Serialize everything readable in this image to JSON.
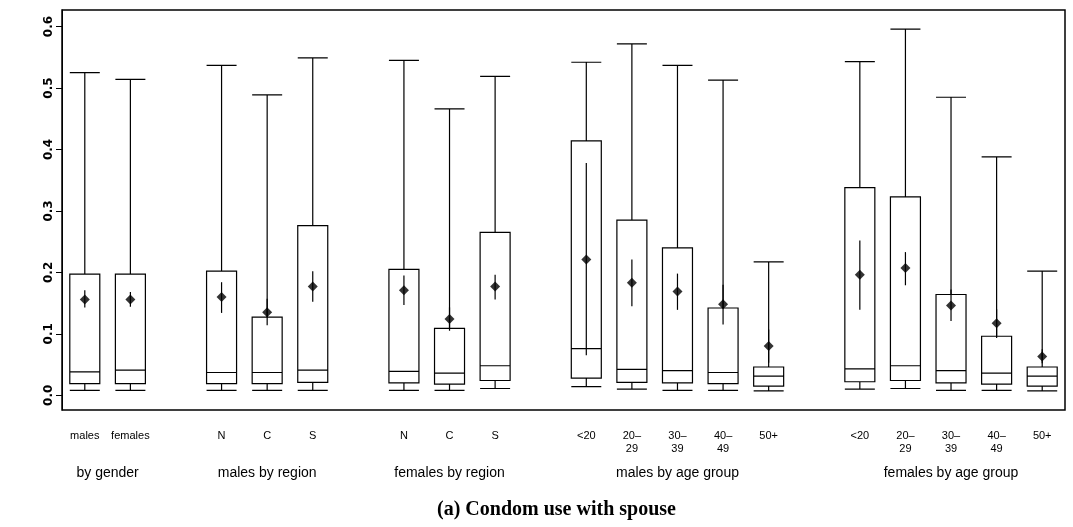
{
  "chart_data": {
    "type": "box",
    "title": "(a) Condom use with spouse",
    "categories": [
      "males",
      "females",
      null,
      "N",
      "C",
      "S",
      null,
      "N",
      "C",
      "S",
      null,
      "<20",
      "20–\n29",
      "30–\n39",
      "40–\n49",
      "50+",
      null,
      "<20",
      "20–\n29",
      "30–\n39",
      "40–\n49",
      "50+"
    ],
    "boxes": [
      {
        "low": 0.008,
        "q1": 0.019,
        "median": 0.038,
        "q3": 0.197,
        "high": 0.525
      },
      {
        "low": 0.008,
        "q1": 0.019,
        "median": 0.041,
        "q3": 0.197,
        "high": 0.514
      },
      null,
      {
        "low": 0.008,
        "q1": 0.019,
        "median": 0.037,
        "q3": 0.202,
        "high": 0.537
      },
      {
        "low": 0.008,
        "q1": 0.019,
        "median": 0.037,
        "q3": 0.127,
        "high": 0.489
      },
      {
        "low": 0.008,
        "q1": 0.021,
        "median": 0.041,
        "q3": 0.276,
        "high": 0.549
      },
      null,
      {
        "low": 0.008,
        "q1": 0.02,
        "median": 0.039,
        "q3": 0.205,
        "high": 0.545
      },
      {
        "low": 0.008,
        "q1": 0.018,
        "median": 0.036,
        "q3": 0.109,
        "high": 0.466
      },
      {
        "low": 0.011,
        "q1": 0.024,
        "median": 0.048,
        "q3": 0.265,
        "high": 0.519
      },
      null,
      {
        "low": 0.014,
        "q1": 0.028,
        "median": 0.076,
        "q3": 0.414,
        "high": 0.542
      },
      {
        "low": 0.01,
        "q1": 0.021,
        "median": 0.042,
        "q3": 0.285,
        "high": 0.572
      },
      {
        "low": 0.008,
        "q1": 0.02,
        "median": 0.04,
        "q3": 0.24,
        "high": 0.537
      },
      {
        "low": 0.008,
        "q1": 0.019,
        "median": 0.037,
        "q3": 0.142,
        "high": 0.513
      },
      {
        "low": 0.007,
        "q1": 0.015,
        "median": 0.031,
        "q3": 0.046,
        "high": 0.217
      },
      null,
      {
        "low": 0.01,
        "q1": 0.022,
        "median": 0.043,
        "q3": 0.338,
        "high": 0.543
      },
      {
        "low": 0.011,
        "q1": 0.024,
        "median": 0.048,
        "q3": 0.323,
        "high": 0.596
      },
      {
        "low": 0.008,
        "q1": 0.02,
        "median": 0.04,
        "q3": 0.164,
        "high": 0.485
      },
      {
        "low": 0.008,
        "q1": 0.018,
        "median": 0.036,
        "q3": 0.096,
        "high": 0.388
      },
      {
        "low": 0.007,
        "q1": 0.015,
        "median": 0.031,
        "q3": 0.046,
        "high": 0.202
      }
    ],
    "series": [
      {
        "type": "scatter",
        "color": "#000000",
        "marker": "diamond",
        "values": [
          0.156,
          0.156,
          null,
          0.16,
          0.135,
          0.177,
          null,
          0.171,
          0.124,
          0.177,
          null,
          0.221,
          0.183,
          0.169,
          0.148,
          0.08,
          null,
          0.196,
          0.207,
          0.146,
          0.117,
          0.063
        ],
        "errors": [
          [
            0.143,
            0.171
          ],
          [
            0.144,
            0.168
          ],
          null,
          [
            0.134,
            0.184
          ],
          [
            0.114,
            0.157
          ],
          [
            0.152,
            0.202
          ],
          null,
          [
            0.147,
            0.195
          ],
          [
            0.105,
            0.143
          ],
          [
            0.156,
            0.196
          ],
          null,
          [
            0.065,
            0.378
          ],
          [
            0.145,
            0.221
          ],
          [
            0.139,
            0.198
          ],
          [
            0.115,
            0.18
          ],
          [
            0.053,
            0.107
          ],
          null,
          [
            0.139,
            0.252
          ],
          [
            0.179,
            0.233
          ],
          [
            0.121,
            0.172
          ],
          [
            0.093,
            0.14
          ],
          [
            0.052,
            0.075
          ]
        ]
      }
    ],
    "color": "#000000",
    "ylim": [
      -0.024,
      0.627
    ],
    "yticks": [
      {
        "value": 0,
        "label": "0.0"
      },
      0.1,
      0.2,
      0.3,
      0.4,
      0.5,
      0.6
    ],
    "grid": false,
    "annotations": [
      "by gender",
      "males by region",
      "females by region",
      "males by age group",
      "females by age group"
    ]
  }
}
